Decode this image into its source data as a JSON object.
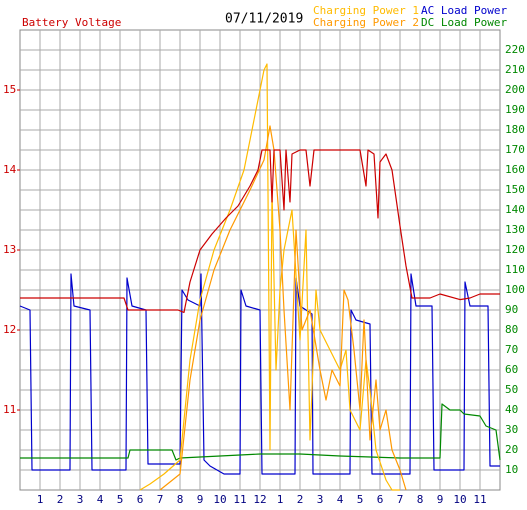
{
  "chart_data": {
    "type": "line",
    "title": "07/11/2019",
    "xlim": [
      0,
      24
    ],
    "xticks": [
      1,
      2,
      3,
      4,
      5,
      6,
      7,
      8,
      9,
      10,
      11,
      12,
      {
        "value": 13,
        "label": "1"
      },
      {
        "value": 14,
        "label": "2"
      },
      {
        "value": 15,
        "label": "3"
      },
      {
        "value": 16,
        "label": "4"
      },
      {
        "value": 17,
        "label": "5"
      },
      {
        "value": 18,
        "label": "6"
      },
      {
        "value": 19,
        "label": "7"
      },
      {
        "value": 20,
        "label": "8"
      },
      {
        "value": 21,
        "label": "9"
      },
      {
        "value": 22,
        "label": "10"
      },
      {
        "value": 23,
        "label": "11"
      }
    ],
    "ylim": [
      10,
      15.75
    ],
    "yticks": [
      11,
      12,
      13,
      14,
      15
    ],
    "y2lim": [
      0,
      230
    ],
    "y2ticks": [
      10,
      20,
      30,
      40,
      50,
      60,
      70,
      80,
      90,
      100,
      110,
      120,
      130,
      140,
      150,
      160,
      170,
      180,
      190,
      200,
      210,
      220
    ],
    "grid": true,
    "series": [
      {
        "name": "Battery Voltage",
        "color": "#cc0000",
        "axis": "y",
        "x": [
          0,
          5.2,
          5.4,
          7.9,
          8.2,
          8.5,
          9,
          9.6,
          10.3,
          10.9,
          11.5,
          11.9,
          12.1,
          12.5,
          12.6,
          12.7,
          13.0,
          13.2,
          13.3,
          13.5,
          13.6,
          14.0,
          14.3,
          14.5,
          14.7,
          16.5,
          17.0,
          17.3,
          17.4,
          17.7,
          17.9,
          18.0,
          18.3,
          18.6,
          19.0,
          19.3,
          19.6,
          20.5,
          21,
          22,
          22.5,
          23,
          24
        ],
        "values": [
          12.4,
          12.4,
          12.25,
          12.25,
          12.22,
          12.6,
          13.0,
          13.2,
          13.4,
          13.55,
          13.8,
          14.0,
          14.25,
          14.25,
          13.6,
          14.25,
          14.25,
          13.5,
          14.25,
          13.6,
          14.2,
          14.25,
          14.25,
          13.8,
          14.25,
          14.25,
          14.25,
          13.8,
          14.25,
          14.2,
          13.4,
          14.1,
          14.2,
          14.0,
          13.3,
          12.8,
          12.4,
          12.4,
          12.45,
          12.38,
          12.4,
          12.45,
          12.45
        ]
      },
      {
        "name": "Charging Power 1",
        "color": "#ffbb00",
        "axis": "y2",
        "x": [
          6,
          6.5,
          7.2,
          8,
          8.5,
          9,
          9.7,
          10.5,
          11.2,
          11.8,
          12.2,
          12.35,
          12.5,
          12.6,
          12.8,
          13.0,
          13.2,
          13.6,
          14.0,
          14.3,
          14.5,
          14.8,
          15.0,
          15.5,
          16.0,
          16.3,
          16.5,
          17.0,
          17.3,
          17.5,
          17.8,
          18.3,
          18.6,
          19
        ],
        "values": [
          0,
          3,
          8,
          15,
          65,
          95,
          120,
          140,
          160,
          190,
          210,
          213,
          20,
          150,
          60,
          100,
          120,
          140,
          75,
          130,
          25,
          100,
          80,
          70,
          60,
          70,
          40,
          30,
          65,
          50,
          20,
          5,
          0,
          0
        ]
      },
      {
        "name": "Charging Power 2",
        "color": "#ff9900",
        "axis": "y2",
        "x": [
          7,
          8,
          8.5,
          9,
          9.7,
          10.5,
          11.5,
          12.2,
          12.5,
          12.7,
          13.0,
          13.2,
          13.5,
          13.8,
          14.1,
          14.5,
          15.0,
          15.3,
          15.6,
          16.0,
          16.2,
          16.4,
          16.7,
          17.0,
          17.2,
          17.5,
          17.8,
          18.0,
          18.3,
          18.6,
          19.0,
          19.3
        ],
        "values": [
          0,
          8,
          55,
          85,
          110,
          130,
          150,
          165,
          182,
          170,
          130,
          90,
          40,
          130,
          80,
          90,
          60,
          45,
          60,
          52,
          100,
          95,
          70,
          40,
          85,
          25,
          55,
          30,
          40,
          20,
          10,
          0
        ]
      },
      {
        "name": "AC Load Power",
        "color": "#0000cc",
        "axis": "y2",
        "x": [
          0,
          0.5,
          0.6,
          2.5,
          2.55,
          2.7,
          3.5,
          3.6,
          5.3,
          5.35,
          5.6,
          6.3,
          6.4,
          8.0,
          8.1,
          8.4,
          9.0,
          9.05,
          9.2,
          9.5,
          10.2,
          11.0,
          11.05,
          11.3,
          12.0,
          12.1,
          13.75,
          13.8,
          14.0,
          14.6,
          14.65,
          16.5,
          16.55,
          16.8,
          17.5,
          17.6,
          19.5,
          19.55,
          19.8,
          20.6,
          20.7,
          22.2,
          22.25,
          22.5,
          23.4,
          23.5,
          24
        ],
        "values": [
          92,
          90,
          10,
          10,
          108,
          92,
          90,
          10,
          10,
          106,
          92,
          90,
          13,
          13,
          100,
          95,
          92,
          108,
          15,
          12,
          8,
          8,
          100,
          92,
          90,
          8,
          8,
          106,
          92,
          88,
          8,
          8,
          90,
          85,
          83,
          8,
          8,
          108,
          92,
          92,
          10,
          10,
          104,
          92,
          92,
          12,
          12
        ]
      },
      {
        "name": "DC Load Power",
        "color": "#008800",
        "axis": "y2",
        "x": [
          0,
          5.4,
          5.5,
          7.6,
          7.8,
          8,
          10,
          12,
          14,
          16,
          19,
          21,
          21.1,
          21.5,
          22.0,
          22.2,
          23.0,
          23.3,
          23.8,
          24
        ],
        "values": [
          16,
          16,
          20,
          20,
          15,
          16,
          17,
          18,
          18,
          17,
          16,
          16,
          43,
          40,
          40,
          38,
          37,
          32,
          30,
          15
        ]
      }
    ]
  }
}
